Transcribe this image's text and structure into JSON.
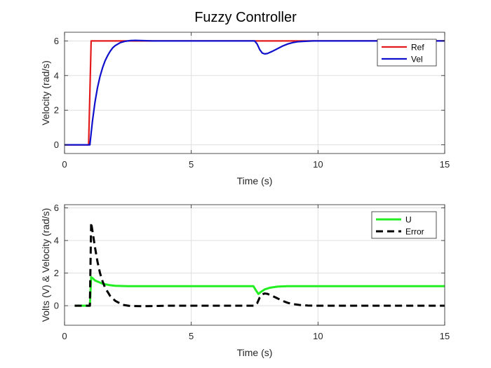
{
  "title": "Fuzzy Controller",
  "chart_data": [
    {
      "type": "line",
      "xlabel": "Time (s)",
      "ylabel": "Velocity (rad/s)",
      "xlim": [
        0,
        15
      ],
      "ylim": [
        -0.5,
        6.5
      ],
      "xticks": [
        0,
        5,
        10,
        15
      ],
      "yticks": [
        0,
        2,
        4,
        6
      ],
      "grid": true,
      "legend_position": "top-right",
      "series": [
        {
          "name": "Ref",
          "color": "#e31a1c",
          "style": "solid",
          "x": [
            0,
            0.95,
            1.05,
            15
          ],
          "y": [
            0,
            0,
            6,
            6
          ]
        },
        {
          "name": "Vel",
          "color": "#1010cc",
          "style": "solid",
          "x": [
            0,
            1.0,
            1.1,
            1.2,
            1.3,
            1.4,
            1.5,
            1.6,
            1.7,
            1.8,
            1.9,
            2.0,
            2.2,
            2.4,
            2.6,
            2.8,
            3.0,
            3.5,
            4,
            5,
            6,
            7,
            7.5,
            7.6,
            7.7,
            7.8,
            7.9,
            8.0,
            8.2,
            8.4,
            8.6,
            8.8,
            9.0,
            9.2,
            9.5,
            9.8,
            10,
            11,
            15
          ],
          "y": [
            0,
            0,
            1.35,
            2.45,
            3.3,
            3.95,
            4.45,
            4.85,
            5.15,
            5.4,
            5.6,
            5.73,
            5.9,
            5.98,
            6.02,
            6.03,
            6.02,
            6.0,
            6.0,
            6.0,
            6.0,
            6.0,
            6.0,
            5.82,
            5.5,
            5.3,
            5.25,
            5.27,
            5.4,
            5.55,
            5.7,
            5.82,
            5.9,
            5.95,
            5.98,
            6.0,
            6.0,
            6.0,
            6.0
          ]
        }
      ]
    },
    {
      "type": "line",
      "xlabel": "Time (s)",
      "ylabel": "Volts (V) & Velocity (rad/s)",
      "xlim": [
        0,
        15
      ],
      "ylim": [
        -1.2,
        6.2
      ],
      "xticks": [
        0,
        5,
        10,
        15
      ],
      "yticks": [
        0,
        2,
        4,
        6
      ],
      "grid": true,
      "legend_position": "top-right",
      "series": [
        {
          "name": "U",
          "color": "#22ee22",
          "style": "solid",
          "x": [
            0.4,
            1.0,
            1.05,
            1.1,
            1.2,
            1.35,
            1.5,
            1.75,
            2.0,
            2.5,
            3,
            5,
            7.45,
            7.55,
            7.65,
            7.75,
            7.9,
            8.1,
            8.4,
            8.8,
            9.5,
            15
          ],
          "y": [
            0,
            0,
            1.75,
            1.7,
            1.55,
            1.45,
            1.35,
            1.27,
            1.22,
            1.2,
            1.2,
            1.2,
            1.2,
            0.95,
            0.72,
            0.85,
            1.0,
            1.1,
            1.17,
            1.2,
            1.2,
            1.2
          ]
        },
        {
          "name": "Error",
          "color": "#000000",
          "style": "dashed",
          "x": [
            0.4,
            1.0,
            1.05,
            1.1,
            1.2,
            1.3,
            1.4,
            1.5,
            1.6,
            1.8,
            2.0,
            2.3,
            2.6,
            3.0,
            3.5,
            4.0,
            5,
            7.5,
            7.6,
            7.7,
            7.8,
            7.9,
            8.0,
            8.2,
            8.4,
            8.6,
            8.8,
            9.0,
            9.3,
            9.6,
            10,
            15
          ],
          "y": [
            0,
            0,
            5.1,
            4.6,
            3.6,
            2.7,
            2.0,
            1.5,
            1.1,
            0.6,
            0.3,
            0.05,
            -0.02,
            -0.03,
            -0.02,
            0,
            0,
            0,
            0.15,
            0.5,
            0.7,
            0.75,
            0.73,
            0.6,
            0.45,
            0.3,
            0.18,
            0.1,
            0.04,
            0.01,
            0,
            0
          ]
        }
      ]
    }
  ]
}
